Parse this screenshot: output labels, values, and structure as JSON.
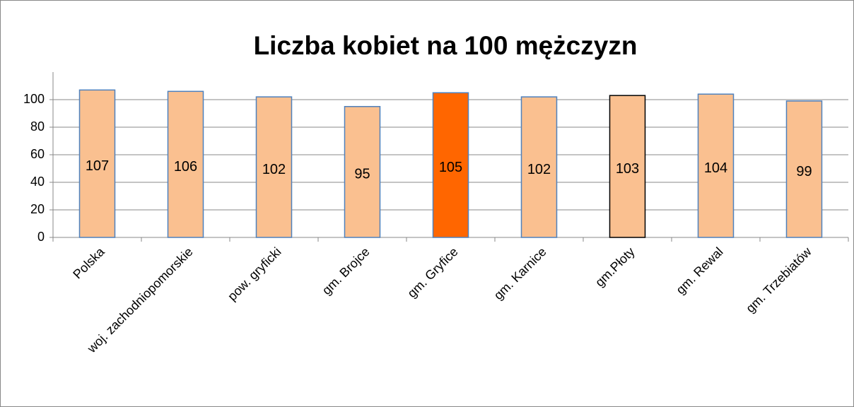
{
  "chart_data": {
    "type": "bar",
    "title": "Liczba kobiet na 100 mężczyzn",
    "categories": [
      "Polska",
      "woj. zachodniopomorskie",
      "pow. gryficki",
      "gm. Brojce",
      "gm. Gryfice",
      "gm. Karnice",
      "gm.Płoty",
      "gm. Rewal",
      "gm. Trzebiatów"
    ],
    "values": [
      107,
      106,
      102,
      95,
      105,
      102,
      103,
      104,
      99
    ],
    "colors": [
      "#fac090",
      "#fac090",
      "#fac090",
      "#fac090",
      "#ff6600",
      "#fac090",
      "#fac090",
      "#fac090",
      "#fac090"
    ],
    "edge_colors": [
      "#4f81bd",
      "#4f81bd",
      "#4f81bd",
      "#4f81bd",
      "#4f81bd",
      "#4f81bd",
      "#000000",
      "#4f81bd",
      "#4f81bd"
    ],
    "ylim": [
      0,
      120
    ],
    "yticks": [
      0,
      20,
      40,
      60,
      80,
      100
    ],
    "grid": true
  }
}
